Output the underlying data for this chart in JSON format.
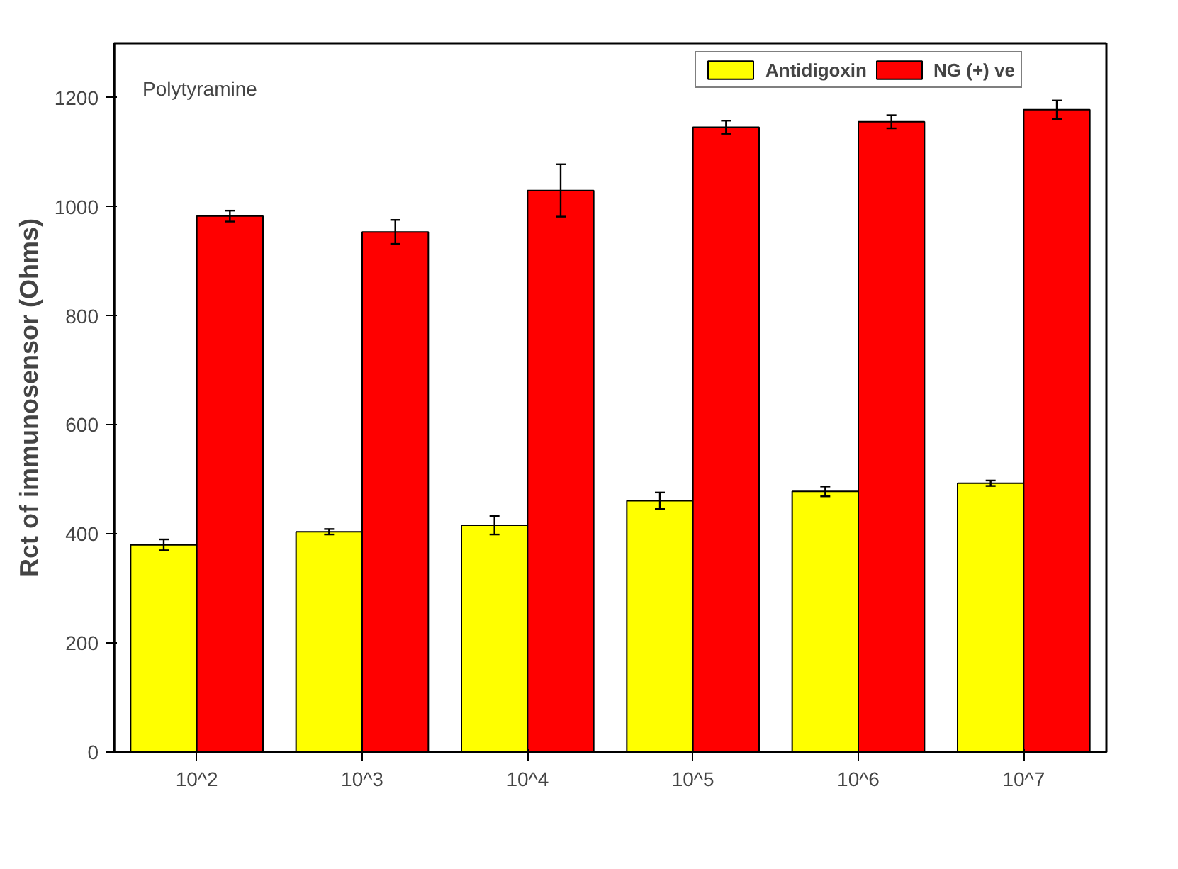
{
  "chart_data": {
    "type": "bar",
    "ylabel": "Rct of immunosensor (Ohms)",
    "categories": [
      "10^2",
      "10^3",
      "10^4",
      "10^5",
      "10^6",
      "10^7"
    ],
    "series": [
      {
        "name": "Antidigoxin",
        "color": "#ffff00",
        "values": [
          380,
          404,
          416,
          461,
          478,
          493
        ],
        "errors": [
          10,
          5,
          17,
          15,
          9,
          5
        ]
      },
      {
        "name": "NG (+) ve",
        "color": "#ff0000",
        "values": [
          983,
          954,
          1030,
          1146,
          1156,
          1178
        ],
        "errors": [
          10,
          22,
          48,
          12,
          12,
          17
        ]
      }
    ],
    "ylim": [
      0,
      1300
    ],
    "yticks": [
      0,
      200,
      400,
      600,
      800,
      1000,
      1200
    ],
    "annotations": [
      "Polytyramine"
    ],
    "grid": false,
    "legend": "top right"
  }
}
